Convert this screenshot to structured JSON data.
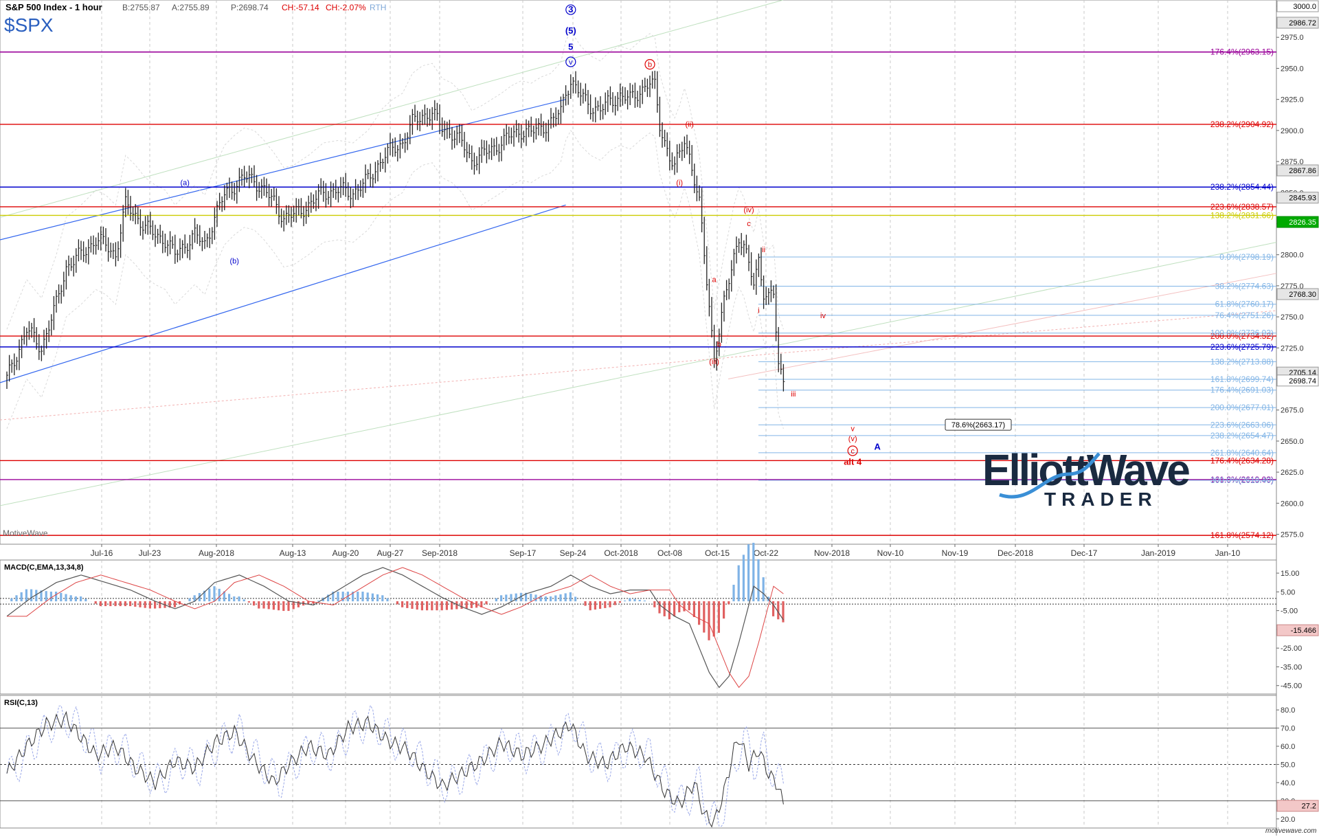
{
  "header": {
    "title": "S&P 500 Index - 1 hour",
    "bid": "B:2755.87",
    "ask": "A:2755.89",
    "price": "P:2698.74",
    "change": "CH:-57.14",
    "change_pct": "CH:-2.07%",
    "session": "RTH",
    "symbol": "$SPX",
    "platform": "MotiveWave",
    "watermark": "motivewave.com"
  },
  "logo": {
    "brand": "ElliottWave",
    "sub": "TRADER"
  },
  "colors": {
    "bar": "#222222",
    "red": "#dd0000",
    "blue": "#0000cc",
    "purple": "#990099",
    "yellow": "#cccc00",
    "lightblue": "#80b4e6",
    "green_marker": "#00aa00",
    "macd_pos": "#7fb3e6",
    "macd_neg": "#e06060",
    "grid": "#c8c8c8"
  },
  "chart_data": [
    {
      "type": "candlestick",
      "title": "S&P 500 Index - 1 hour",
      "x_ticks": [
        "Jul-16",
        "Jul-23",
        "Aug-2018",
        "Aug-13",
        "Aug-20",
        "Aug-27",
        "Sep-2018",
        "Sep-17",
        "Sep-24",
        "Oct-2018",
        "Oct-08",
        "Oct-15",
        "Oct-22",
        "Nov-2018",
        "Nov-10",
        "Nov-19",
        "Dec-2018",
        "Dec-17",
        "Jan-2019",
        "Jan-10"
      ],
      "ylim": [
        2567,
        3005
      ],
      "y_ticks": [
        3000,
        2975,
        2950,
        2925,
        2900,
        2875,
        2850,
        2825,
        2800,
        2775,
        2750,
        2725,
        2700,
        2675,
        2650,
        2625,
        2600,
        2575
      ],
      "price_path": [
        [
          0,
          2700
        ],
        [
          4,
          2740
        ],
        [
          7,
          2725
        ],
        [
          10,
          2760
        ],
        [
          12,
          2790
        ],
        [
          15,
          2800
        ],
        [
          18,
          2812
        ],
        [
          20,
          2808
        ],
        [
          22,
          2800
        ],
        [
          23,
          2820
        ],
        [
          24,
          2840
        ],
        [
          26,
          2832
        ],
        [
          28,
          2822
        ],
        [
          30,
          2816
        ],
        [
          32,
          2812
        ],
        [
          34,
          2800
        ],
        [
          36,
          2808
        ],
        [
          38,
          2816
        ],
        [
          40,
          2808
        ],
        [
          42,
          2830
        ],
        [
          44,
          2848
        ],
        [
          46,
          2856
        ],
        [
          48,
          2862
        ],
        [
          50,
          2860
        ],
        [
          52,
          2852
        ],
        [
          54,
          2842
        ],
        [
          56,
          2830
        ],
        [
          58,
          2832
        ],
        [
          61,
          2840
        ],
        [
          64,
          2850
        ],
        [
          67,
          2852
        ],
        [
          70,
          2850
        ],
        [
          73,
          2860
        ],
        [
          76,
          2878
        ],
        [
          78,
          2885
        ],
        [
          80,
          2890
        ],
        [
          82,
          2906
        ],
        [
          84,
          2912
        ],
        [
          86,
          2914
        ],
        [
          88,
          2902
        ],
        [
          90,
          2898
        ],
        [
          92,
          2890
        ],
        [
          94,
          2876
        ],
        [
          96,
          2880
        ],
        [
          98,
          2885
        ],
        [
          100,
          2890
        ],
        [
          102,
          2896
        ],
        [
          104,
          2900
        ],
        [
          106,
          2898
        ],
        [
          108,
          2903
        ],
        [
          110,
          2906
        ],
        [
          112,
          2915
        ],
        [
          113,
          2932
        ],
        [
          114,
          2940
        ],
        [
          116,
          2928
        ],
        [
          118,
          2920
        ],
        [
          120,
          2916
        ],
        [
          122,
          2924
        ],
        [
          124,
          2928
        ],
        [
          126,
          2925
        ],
        [
          128,
          2932
        ],
        [
          130,
          2938
        ],
        [
          131,
          2935
        ],
        [
          132,
          2905
        ],
        [
          134,
          2878
        ],
        [
          135,
          2870
        ],
        [
          136,
          2880
        ],
        [
          137,
          2894
        ],
        [
          138,
          2880
        ],
        [
          139,
          2860
        ],
        [
          140,
          2840
        ],
        [
          141,
          2800
        ],
        [
          142,
          2760
        ],
        [
          143,
          2716
        ],
        [
          144,
          2738
        ],
        [
          145,
          2760
        ],
        [
          146,
          2780
        ],
        [
          147,
          2800
        ],
        [
          148,
          2814
        ],
        [
          149,
          2806
        ],
        [
          150,
          2790
        ],
        [
          151,
          2778
        ],
        [
          152,
          2797
        ],
        [
          153,
          2770
        ],
        [
          154,
          2764
        ],
        [
          155,
          2768
        ],
        [
          156,
          2712
        ],
        [
          157,
          2700
        ]
      ],
      "macd": {
        "label": "MACD(C,EMA,13,34,8)",
        "ylim": [
          -49.5,
          22
        ],
        "y_ticks": [
          15,
          5,
          -5,
          -15,
          -25,
          -35,
          -45
        ],
        "current": "-15.466",
        "path": [
          [
            0,
            -8
          ],
          [
            5,
            2
          ],
          [
            10,
            10
          ],
          [
            15,
            14
          ],
          [
            20,
            10
          ],
          [
            25,
            6
          ],
          [
            30,
            0
          ],
          [
            34,
            -4
          ],
          [
            38,
            0
          ],
          [
            42,
            10
          ],
          [
            47,
            14
          ],
          [
            52,
            8
          ],
          [
            57,
            0
          ],
          [
            62,
            -2
          ],
          [
            67,
            6
          ],
          [
            72,
            14
          ],
          [
            76,
            18
          ],
          [
            80,
            14
          ],
          [
            84,
            8
          ],
          [
            88,
            2
          ],
          [
            92,
            -3
          ],
          [
            96,
            -7
          ],
          [
            100,
            -3
          ],
          [
            105,
            4
          ],
          [
            110,
            8
          ],
          [
            114,
            14
          ],
          [
            118,
            8
          ],
          [
            122,
            4
          ],
          [
            126,
            6
          ],
          [
            130,
            6
          ],
          [
            132,
            -2
          ],
          [
            135,
            -8
          ],
          [
            138,
            -12
          ],
          [
            140,
            -25
          ],
          [
            142,
            -38
          ],
          [
            144,
            -46
          ],
          [
            146,
            -40
          ],
          [
            148,
            -22
          ],
          [
            150,
            -2
          ],
          [
            151,
            8
          ],
          [
            153,
            4
          ],
          [
            155,
            -2
          ],
          [
            157,
            -10
          ]
        ]
      },
      "rsi": {
        "label": "RSI(C,13)",
        "ylim": [
          15,
          88
        ],
        "y_ticks": [
          80,
          70,
          60,
          50,
          40,
          30,
          20
        ],
        "current": "27.2",
        "path": [
          [
            0,
            45
          ],
          [
            4,
            60
          ],
          [
            8,
            72
          ],
          [
            12,
            75
          ],
          [
            15,
            65
          ],
          [
            18,
            55
          ],
          [
            22,
            60
          ],
          [
            26,
            48
          ],
          [
            30,
            40
          ],
          [
            34,
            52
          ],
          [
            38,
            48
          ],
          [
            42,
            62
          ],
          [
            46,
            68
          ],
          [
            50,
            52
          ],
          [
            54,
            40
          ],
          [
            57,
            50
          ],
          [
            61,
            60
          ],
          [
            65,
            55
          ],
          [
            69,
            70
          ],
          [
            73,
            73
          ],
          [
            77,
            63
          ],
          [
            81,
            58
          ],
          [
            84,
            48
          ],
          [
            88,
            38
          ],
          [
            92,
            45
          ],
          [
            96,
            52
          ],
          [
            100,
            62
          ],
          [
            104,
            55
          ],
          [
            108,
            60
          ],
          [
            112,
            68
          ],
          [
            114,
            72
          ],
          [
            117,
            55
          ],
          [
            121,
            50
          ],
          [
            125,
            60
          ],
          [
            129,
            55
          ],
          [
            131,
            45
          ],
          [
            133,
            35
          ],
          [
            136,
            28
          ],
          [
            139,
            40
          ],
          [
            141,
            22
          ],
          [
            143,
            18
          ],
          [
            145,
            35
          ],
          [
            147,
            58
          ],
          [
            148,
            65
          ],
          [
            150,
            50
          ],
          [
            152,
            58
          ],
          [
            154,
            45
          ],
          [
            156,
            38
          ],
          [
            157,
            27
          ]
        ]
      }
    }
  ],
  "hlines": [
    {
      "label": "176.4%(2963.15)",
      "value": 2963.15,
      "color": "#990099",
      "width": 1.6
    },
    {
      "label": "238.2%(2904.92)",
      "value": 2904.92,
      "color": "#dd0000",
      "width": 1.4
    },
    {
      "label": "238.2%(2854.44)",
      "value": 2854.44,
      "color": "#0000cc",
      "width": 1.4
    },
    {
      "label": "223.6%(2838.57)",
      "value": 2838.57,
      "color": "#dd0000",
      "width": 1.4
    },
    {
      "label": "138.2%(2831.66)",
      "value": 2831.66,
      "color": "#cccc00",
      "width": 1.4
    },
    {
      "label": "200.0%(2734.52)",
      "value": 2734.52,
      "color": "#dd0000",
      "width": 1.4
    },
    {
      "label": "223.6%(2725.79)",
      "value": 2725.79,
      "color": "#0000cc",
      "width": 1.4
    },
    {
      "label": "176.4%(2634.28)",
      "value": 2634.28,
      "color": "#dd0000",
      "width": 1.4
    },
    {
      "label": "161.8%(2619.03)",
      "value": 2619.03,
      "color": "#990099",
      "width": 1.4
    },
    {
      "label": "161.8%(2574.12)",
      "value": 2574.12,
      "color": "#dd0000",
      "width": 1.4
    }
  ],
  "fib_lines": [
    {
      "label": "0.0%(2798.19)",
      "value": 2798.19
    },
    {
      "label": "38.2%(2774.63)",
      "value": 2774.63
    },
    {
      "label": "61.8%(2760.17)",
      "value": 2760.17
    },
    {
      "label": "76.4%(2751.26)",
      "value": 2751.26
    },
    {
      "label": "100.0%(2736.93)",
      "value": 2736.93
    },
    {
      "label": "138.2%(2713.88)",
      "value": 2713.88
    },
    {
      "label": "161.8%(2699.74)",
      "value": 2699.74
    },
    {
      "label": "176.4%(2691.03)",
      "value": 2691.03
    },
    {
      "label": "200.0%(2677.01)",
      "value": 2677.01
    },
    {
      "label": "223.6%(2663.06)",
      "value": 2663.06
    },
    {
      "label": "238.2%(2654.47)",
      "value": 2654.47
    },
    {
      "label": "261.8%(2640.64)",
      "value": 2640.64
    },
    {
      "label": "300.0%(2618.40)",
      "value": 2618.4
    }
  ],
  "boxed_label": "78.6%(2663.17)",
  "price_boxes": [
    {
      "label": "3000.0",
      "value": 3000,
      "bg": "#ffffff",
      "fg": "#000000",
      "border": "#999999"
    },
    {
      "label": "2986.72",
      "value": 2986.72,
      "bg": "#e6e6e6",
      "fg": "#000000",
      "border": "#999999"
    },
    {
      "label": "2867.86",
      "value": 2867.86,
      "bg": "#e6e6e6",
      "fg": "#000000",
      "border": "#999999"
    },
    {
      "label": "2845.93",
      "value": 2845.93,
      "bg": "#e6e6e6",
      "fg": "#000000",
      "border": "#999999"
    },
    {
      "label": "2826.35",
      "value": 2826.35,
      "bg": "#00aa00",
      "fg": "#ffffff",
      "border": "#008800"
    },
    {
      "label": "2768.30",
      "value": 2768.3,
      "bg": "#e6e6e6",
      "fg": "#000000",
      "border": "#999999"
    },
    {
      "label": "2705.14",
      "value": 2705.14,
      "bg": "#e6e6e6",
      "fg": "#000000",
      "border": "#999999"
    },
    {
      "label": "2698.74",
      "value": 2698.74,
      "bg": "#ffffff",
      "fg": "#000000",
      "border": "#999999"
    }
  ],
  "wave_labels": [
    {
      "text": "3",
      "x": 114,
      "y": 2995,
      "color": "#0000cc",
      "circle": true,
      "bold": true
    },
    {
      "text": "(5)",
      "x": 114,
      "y": 2978,
      "color": "#0000cc",
      "bold": true
    },
    {
      "text": "5",
      "x": 114,
      "y": 2965,
      "color": "#0000cc",
      "bold": true
    },
    {
      "text": "v",
      "x": 114,
      "y": 2953,
      "color": "#0000cc",
      "circle": true
    },
    {
      "text": "b",
      "x": 130,
      "y": 2951,
      "color": "#dd0000",
      "circle": true
    },
    {
      "text": "(a)",
      "x": 36,
      "y": 2856,
      "color": "#0000cc"
    },
    {
      "text": "(b)",
      "x": 46,
      "y": 2793,
      "color": "#0000cc"
    },
    {
      "text": "(ii)",
      "x": 138,
      "y": 2903,
      "color": "#dd0000"
    },
    {
      "text": "(i)",
      "x": 136,
      "y": 2856,
      "color": "#dd0000"
    },
    {
      "text": "(iv)",
      "x": 150,
      "y": 2834,
      "color": "#dd0000"
    },
    {
      "text": "c",
      "x": 150,
      "y": 2823,
      "color": "#dd0000"
    },
    {
      "text": "a",
      "x": 143,
      "y": 2778,
      "color": "#dd0000"
    },
    {
      "text": "b",
      "x": 144,
      "y": 2726,
      "color": "#dd0000"
    },
    {
      "text": "(iii)",
      "x": 143,
      "y": 2712,
      "color": "#dd0000"
    },
    {
      "text": "ii",
      "x": 153,
      "y": 2802,
      "color": "#dd0000"
    },
    {
      "text": "i",
      "x": 152,
      "y": 2753,
      "color": "#dd0000"
    },
    {
      "text": "iv",
      "x": 165,
      "y": 2749,
      "color": "#dd0000"
    },
    {
      "text": "iii",
      "x": 159,
      "y": 2686,
      "color": "#dd0000"
    },
    {
      "text": "v",
      "x": 171,
      "y": 2658,
      "color": "#dd0000"
    },
    {
      "text": "(v)",
      "x": 171,
      "y": 2650,
      "color": "#dd0000"
    },
    {
      "text": "c",
      "x": 171,
      "y": 2640,
      "color": "#dd0000",
      "circle": true
    },
    {
      "text": "alt 4",
      "x": 171,
      "y": 2631,
      "color": "#dd0000",
      "bold": true
    },
    {
      "text": "A",
      "x": 176,
      "y": 2643,
      "color": "#0000cc",
      "bold": true
    }
  ]
}
